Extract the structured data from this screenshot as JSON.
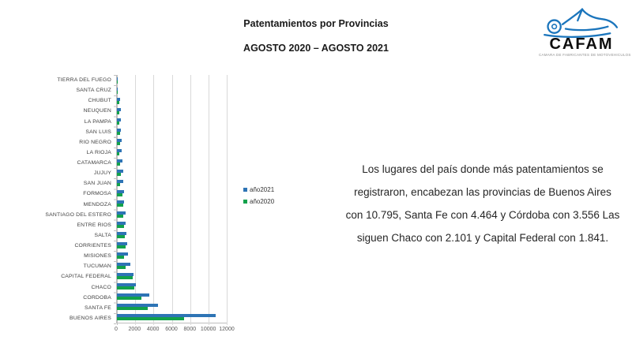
{
  "header": {
    "title_line1": "Patentamientos por Provincias",
    "title_line2": "AGOSTO 2020 – AGOSTO 2021"
  },
  "logo": {
    "brand": "CAFAM",
    "tagline": "CAMARA DE FABRICANTES DE MOTOVEHICULOS",
    "accent_color": "#1b75bc"
  },
  "chart_data": {
    "type": "bar",
    "orientation": "horizontal",
    "categories": [
      "TIERRA DEL FUEGO",
      "SANTA CRUZ",
      "CHUBUT",
      "NEUQUEN",
      "LA PAMPA",
      "SAN LUIS",
      "RIO NEGRO",
      "LA RIOJA",
      "CATAMARCA",
      "JUJUY",
      "SAN JUAN",
      "FORMOSA",
      "MENDOZA",
      "SANTIAGO DEL ESTERO",
      "ENTRE RIOS",
      "SALTA",
      "CORRIENTES",
      "MISIONES",
      "TUCUMAN",
      "CAPITAL FEDERAL",
      "CHACO",
      "CORDOBA",
      "SANTA FE",
      "BUENOS AIRES"
    ],
    "series": [
      {
        "name": "año2021",
        "color": "#2e74b5",
        "values": [
          40,
          70,
          370,
          400,
          420,
          430,
          480,
          560,
          610,
          650,
          680,
          800,
          820,
          930,
          990,
          1070,
          1150,
          1200,
          1450,
          1841,
          2101,
          3556,
          4464,
          10795
        ]
      },
      {
        "name": "año2020",
        "color": "#12a14b",
        "values": [
          30,
          50,
          230,
          280,
          230,
          340,
          310,
          280,
          350,
          400,
          350,
          590,
          680,
          730,
          790,
          870,
          990,
          820,
          990,
          1740,
          1900,
          2670,
          3350,
          7350
        ]
      }
    ],
    "xlim": [
      0,
      12000
    ],
    "xticks": [
      0,
      2000,
      4000,
      6000,
      8000,
      10000,
      12000
    ],
    "grid": true,
    "legend_position": "right",
    "title": "",
    "xlabel": "",
    "ylabel": ""
  },
  "annotation": {
    "lines": [
      "Los lugares del país donde más patentamientos se",
      "registraron, encabezan las provincias de Buenos Aires",
      "con 10.795, Santa Fe con 4.464 y Córdoba con 3.556 Las",
      "siguen Chaco con 2.101 y Capital Federal con 1.841."
    ]
  }
}
